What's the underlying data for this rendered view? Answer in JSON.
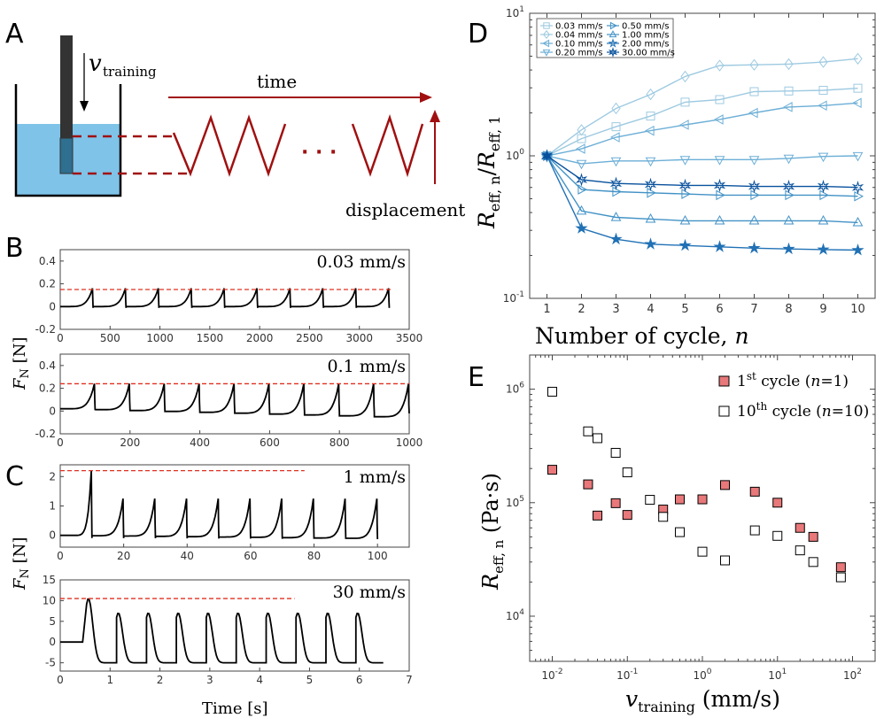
{
  "panels": {
    "A": {
      "letter": "A",
      "velocity_symbol": "v",
      "velocity_subscript": "training",
      "time_label": "time",
      "displacement_label": "displacement",
      "ellipsis": "· · ·",
      "colors": {
        "water": "#7fc3e8",
        "probe": "#333333",
        "wave": "#a01010"
      }
    },
    "B": {
      "letter": "B"
    },
    "C": {
      "letter": "C"
    },
    "D": {
      "letter": "D"
    },
    "E": {
      "letter": "E"
    }
  },
  "axis_labels": {
    "fn_base": "F",
    "fn_sub": "N",
    "fn_unit": "[N]",
    "time": "Time [s]",
    "d_x": "Number of cycle, ",
    "d_x_var": "n",
    "d_y_base1": "R",
    "d_y_sub1": "eff, n",
    "d_y_slash": "/",
    "d_y_base2": "R",
    "d_y_sub2": "eff, 1",
    "e_x_base": "v",
    "e_x_sub": "training",
    "e_x_unit": "(mm/s)",
    "e_y_base": "R",
    "e_y_sub": "eff, n",
    "e_y_unit": "(Pa·s)"
  },
  "chart_data": [
    {
      "id": "B1",
      "type": "line",
      "speed_label": "0.03 mm/s",
      "x": {
        "lim": [
          0,
          3500
        ],
        "ticks": [
          "0",
          "500",
          "1000",
          "1500",
          "2000",
          "2500",
          "3000",
          "3500"
        ]
      },
      "y": {
        "lim": [
          -0.2,
          0.5
        ],
        "ticks": [
          "-0.2",
          "0",
          "0.2",
          "0.4"
        ]
      },
      "cycles": 10,
      "period": 330,
      "t_end": 3330,
      "peak": 0.16,
      "base_start": 0.0,
      "base_end": 0.0,
      "trough": -0.02,
      "max_line": {
        "y": 0.15,
        "x_end": 3330
      },
      "colors": {
        "trace": "#000000",
        "max_line": "#e03020"
      }
    },
    {
      "id": "B2",
      "type": "line",
      "speed_label": "0.1 mm/s",
      "x": {
        "lim": [
          0,
          1000
        ],
        "ticks": [
          "0",
          "200",
          "400",
          "600",
          "800",
          "1000"
        ]
      },
      "y": {
        "lim": [
          -0.2,
          0.5
        ],
        "ticks": [
          "-0.2",
          "0",
          "0.2",
          "0.4"
        ]
      },
      "cycles": 10,
      "period": 100,
      "t_end": 1000,
      "peak": 0.24,
      "base_start": 0.02,
      "base_end": -0.05,
      "trough": 0.0,
      "max_line": {
        "y": 0.24,
        "x_end": 1000
      },
      "colors": {
        "trace": "#000000",
        "max_line": "#e03020"
      }
    },
    {
      "id": "C1",
      "type": "line",
      "speed_label": "1 mm/s",
      "x": {
        "lim": [
          0,
          110
        ],
        "ticks": [
          "0",
          "20",
          "40",
          "60",
          "80",
          "100"
        ]
      },
      "y": {
        "lim": [
          -0.4,
          2.4
        ],
        "ticks": [
          "0",
          "1",
          "2"
        ]
      },
      "cycles": 10,
      "period": 10,
      "t_end": 100,
      "first_peak": 2.2,
      "peak": 1.25,
      "base_start": 0.0,
      "base_end": -0.1,
      "trough": -0.15,
      "max_line": {
        "y": 2.2,
        "x_end": 77
      },
      "colors": {
        "trace": "#000000",
        "max_line": "#e03020"
      }
    },
    {
      "id": "C2",
      "type": "line",
      "speed_label": "30 mm/s",
      "x": {
        "lim": [
          0,
          7
        ],
        "ticks": [
          "0",
          "1",
          "2",
          "3",
          "4",
          "5",
          "6",
          "7"
        ]
      },
      "y": {
        "lim": [
          -7,
          15
        ],
        "ticks": [
          "-5",
          "0",
          "5",
          "10",
          "15"
        ]
      },
      "cycles": 10,
      "period": 0.6,
      "t_start_cycle": 0.53,
      "t_end": 6.5,
      "first_peak": 10.5,
      "peak": 7.0,
      "trough": -5.0,
      "max_line": {
        "y": 10.5,
        "x_end": 4.7
      },
      "colors": {
        "trace": "#000000",
        "max_line": "#e03020"
      }
    },
    {
      "id": "D",
      "type": "line",
      "x": {
        "lim": [
          0.5,
          10.5
        ],
        "ticks": [
          "1",
          "2",
          "3",
          "4",
          "5",
          "6",
          "7",
          "8",
          "9",
          "10"
        ]
      },
      "y": {
        "scale": "log",
        "lim": [
          0.1,
          10
        ],
        "ticks": [
          {
            "base": "10",
            "exp": "-1"
          },
          {
            "base": "10",
            "exp": "0"
          },
          {
            "base": "10",
            "exp": "1"
          }
        ]
      },
      "categories": [
        1,
        2,
        3,
        4,
        5,
        6,
        7,
        8,
        9,
        10
      ],
      "series": [
        {
          "name": "0.03 mm/s",
          "marker": "square",
          "color": "#9ecae1",
          "values": [
            1.0,
            1.32,
            1.6,
            1.9,
            2.38,
            2.48,
            2.82,
            2.85,
            2.88,
            2.98
          ]
        },
        {
          "name": "0.04 mm/s",
          "marker": "diamond",
          "color": "#9ecae1",
          "values": [
            1.0,
            1.52,
            2.15,
            2.7,
            3.6,
            4.3,
            4.35,
            4.4,
            4.55,
            4.8
          ]
        },
        {
          "name": "0.10 mm/s",
          "marker": "tri-left",
          "color": "#6baed6",
          "values": [
            1.0,
            1.12,
            1.35,
            1.5,
            1.65,
            1.8,
            2.0,
            2.2,
            2.25,
            2.35
          ]
        },
        {
          "name": "0.20 mm/s",
          "marker": "tri-down",
          "color": "#6baed6",
          "values": [
            1.0,
            0.88,
            0.92,
            0.92,
            0.94,
            0.94,
            0.94,
            0.96,
            0.99,
            1.0
          ]
        },
        {
          "name": "0.50 mm/s",
          "marker": "tri-right",
          "color": "#4292c6",
          "values": [
            1.0,
            0.58,
            0.56,
            0.55,
            0.54,
            0.53,
            0.53,
            0.53,
            0.53,
            0.52
          ]
        },
        {
          "name": "1.00 mm/s",
          "marker": "tri-up",
          "color": "#4292c6",
          "values": [
            1.0,
            0.41,
            0.37,
            0.36,
            0.35,
            0.35,
            0.35,
            0.35,
            0.35,
            0.34
          ]
        },
        {
          "name": "2.00 mm/s",
          "marker": "star",
          "color": "#2171b5",
          "values": [
            1.0,
            0.31,
            0.26,
            0.24,
            0.235,
            0.23,
            0.225,
            0.222,
            0.22,
            0.218
          ]
        },
        {
          "name": "30.00 mm/s",
          "marker": "hexstar",
          "color": "#08519c",
          "values": [
            1.0,
            0.68,
            0.64,
            0.63,
            0.62,
            0.62,
            0.61,
            0.61,
            0.61,
            0.6
          ]
        }
      ],
      "legend": {
        "placement": "top-left"
      }
    },
    {
      "id": "E",
      "type": "scatter",
      "x": {
        "scale": "log",
        "lim": [
          0.005,
          200
        ],
        "ticks": [
          {
            "base": "10",
            "exp": "-2"
          },
          {
            "base": "10",
            "exp": "-1"
          },
          {
            "base": "10",
            "exp": "0"
          },
          {
            "base": "10",
            "exp": "1"
          },
          {
            "base": "10",
            "exp": "2"
          }
        ]
      },
      "y": {
        "scale": "log",
        "lim": [
          4000,
          2000000
        ],
        "ticks": [
          {
            "base": "10",
            "exp": "4"
          },
          {
            "base": "10",
            "exp": "5"
          },
          {
            "base": "10",
            "exp": "6"
          }
        ]
      },
      "series": [
        {
          "name_main": "1",
          "name_sup": "st",
          "name_rest": " cycle (",
          "name_var": "n",
          "name_end": "=1)",
          "fill": "#e8787a",
          "stroke": "#000000",
          "points": [
            [
              0.01,
              195000
            ],
            [
              0.03,
              145000
            ],
            [
              0.04,
              77000
            ],
            [
              0.07,
              99000
            ],
            [
              0.1,
              78000
            ],
            [
              0.3,
              87000
            ],
            [
              0.5,
              107000
            ],
            [
              1,
              107000
            ],
            [
              2,
              143000
            ],
            [
              5,
              125000
            ],
            [
              10,
              100000
            ],
            [
              20,
              60000
            ],
            [
              30,
              50000
            ],
            [
              70,
              27000
            ]
          ]
        },
        {
          "name_main": "10",
          "name_sup": "th",
          "name_rest": " cycle (",
          "name_var": "n",
          "name_end": "=10)",
          "fill": "#ffffff",
          "stroke": "#000000",
          "points": [
            [
              0.01,
              950000
            ],
            [
              0.03,
              425000
            ],
            [
              0.04,
              370000
            ],
            [
              0.07,
              275000
            ],
            [
              0.1,
              185000
            ],
            [
              0.2,
              106000
            ],
            [
              0.3,
              75000
            ],
            [
              0.5,
              55000
            ],
            [
              1,
              37000
            ],
            [
              2,
              31000
            ],
            [
              5,
              57000
            ],
            [
              10,
              51000
            ],
            [
              20,
              38000
            ],
            [
              30,
              30000
            ],
            [
              70,
              22000
            ]
          ]
        }
      ],
      "legend": {
        "placement": "top-right"
      }
    }
  ]
}
